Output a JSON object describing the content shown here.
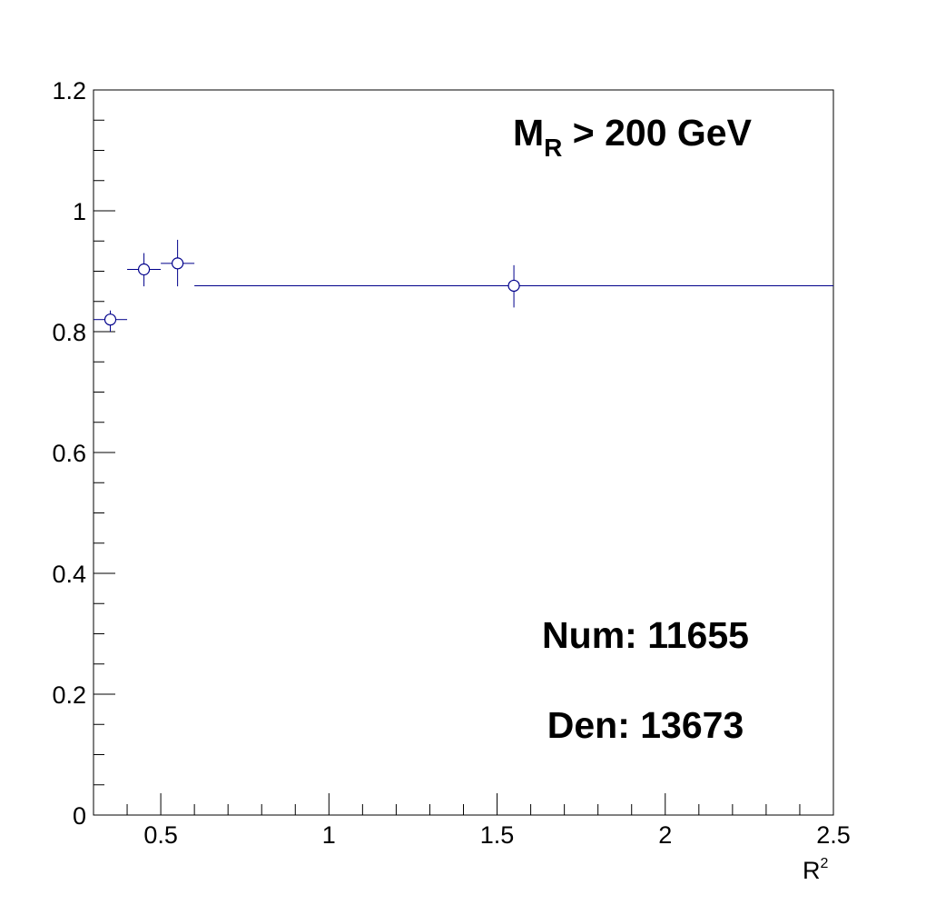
{
  "chart_data": {
    "type": "scatter",
    "title": "",
    "xlabel": "R",
    "xlabel_sup": "2",
    "ylabel": "",
    "xlim": [
      0.3,
      2.5
    ],
    "ylim": [
      0,
      1.2
    ],
    "grid": false,
    "x_tick_labels": [
      "0.5",
      "1",
      "1.5",
      "2",
      "2.5"
    ],
    "y_tick_labels": [
      "0",
      "0.2",
      "0.4",
      "0.6",
      "0.8",
      "1",
      "1.2"
    ],
    "marker": "open-circle",
    "color": "#00008b",
    "points": [
      {
        "x": 0.35,
        "y": 0.82,
        "xlow": 0.3,
        "xhigh": 0.4,
        "ylow": 0.8,
        "yhigh": 0.835
      },
      {
        "x": 0.45,
        "y": 0.903,
        "xlow": 0.4,
        "xhigh": 0.5,
        "ylow": 0.875,
        "yhigh": 0.93
      },
      {
        "x": 0.55,
        "y": 0.913,
        "xlow": 0.5,
        "xhigh": 0.6,
        "ylow": 0.875,
        "yhigh": 0.952
      },
      {
        "x": 1.55,
        "y": 0.876,
        "xlow": 0.6,
        "xhigh": 2.5,
        "ylow": 0.84,
        "yhigh": 0.91
      }
    ],
    "annotations": {
      "mass_main": "M",
      "mass_sub": "R",
      "mass_rest": " > 200 GeV",
      "num": "Num: 11655",
      "den": "Den: 13673"
    }
  }
}
